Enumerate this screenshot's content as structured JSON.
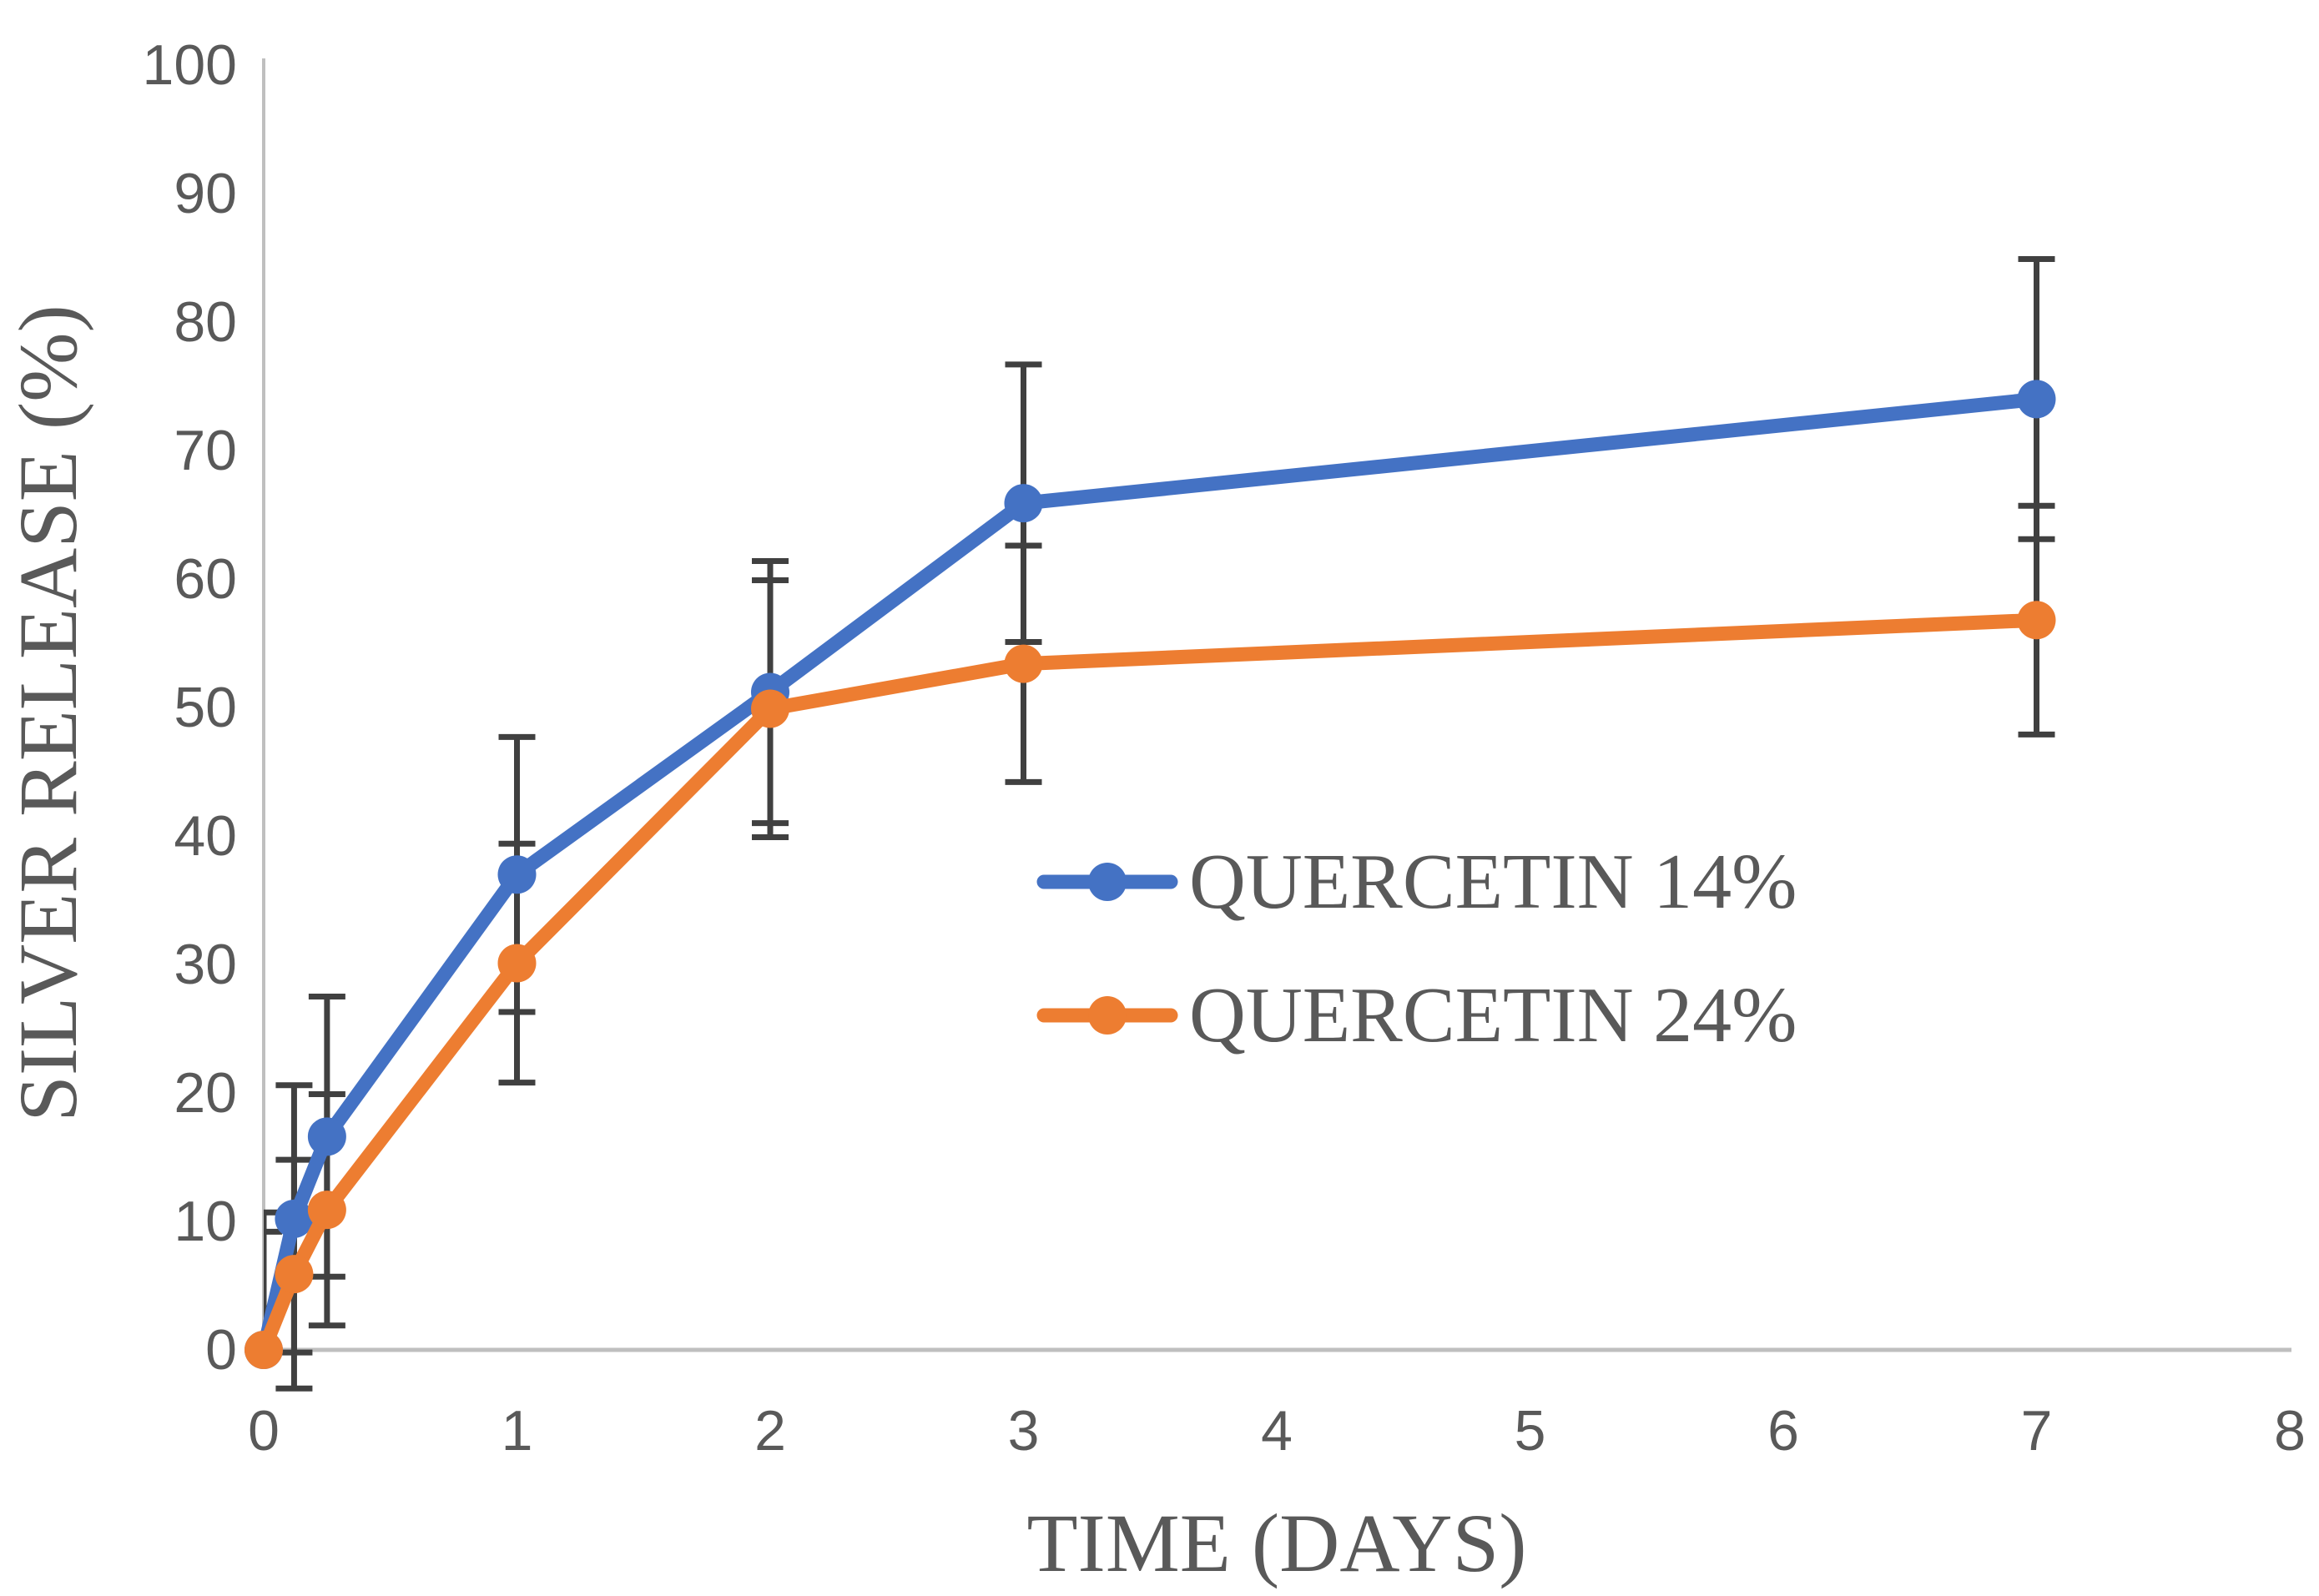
{
  "chart_data": {
    "type": "line",
    "title": "",
    "xlabel": "TIME (DAYS)",
    "ylabel": "SILVER RELEASE (%)",
    "xlim": [
      0,
      8
    ],
    "ylim": [
      0,
      100
    ],
    "x_ticks": [
      0,
      1,
      2,
      3,
      4,
      5,
      6,
      7,
      8
    ],
    "y_ticks": [
      0,
      10,
      20,
      30,
      40,
      50,
      60,
      70,
      80,
      90,
      100
    ],
    "grid": false,
    "legend_position": "inside-center-right",
    "axis_line_color": "#BFBFBF",
    "tick_label_color": "#595959",
    "error_bar_color": "#404040",
    "series": [
      {
        "name": "QUERCETIN 14%",
        "color": "#4472C4",
        "x": [
          0,
          0.12,
          0.25,
          1,
          2,
          3,
          7
        ],
        "y": [
          0,
          10.2,
          16.6,
          37.0,
          51.2,
          65.9,
          74.0
        ],
        "err_plus": [
          10.7,
          10.4,
          10.9,
          10.7,
          10.2,
          10.8,
          10.9
        ],
        "err_minus": [
          0,
          10.4,
          10.9,
          10.7,
          10.2,
          10.8,
          10.9
        ]
      },
      {
        "name": "QUERCETIN 24%",
        "color": "#ED7D31",
        "x": [
          0,
          0.12,
          0.25,
          1,
          2,
          3,
          7
        ],
        "y": [
          0,
          5.9,
          10.9,
          30.1,
          49.9,
          53.4,
          56.8
        ],
        "err_plus": [
          9.2,
          8.9,
          9.0,
          9.3,
          10.0,
          9.2,
          8.9
        ],
        "err_minus": [
          0,
          8.9,
          9.0,
          9.3,
          10.0,
          9.2,
          8.9
        ]
      }
    ]
  },
  "legend": {
    "items": [
      {
        "label": "QUERCETIN 14%",
        "color": "#4472C4"
      },
      {
        "label": "QUERCETIN 24%",
        "color": "#ED7D31"
      }
    ]
  }
}
